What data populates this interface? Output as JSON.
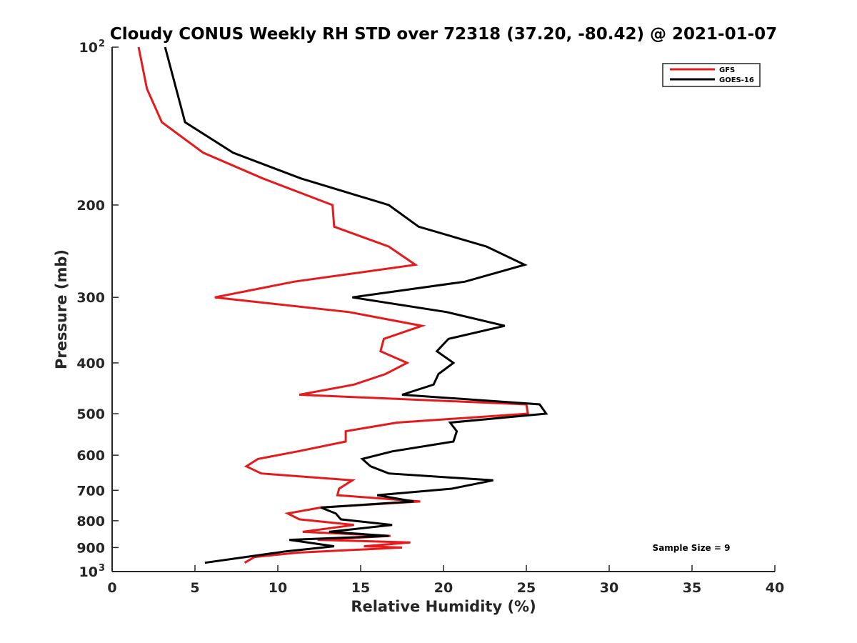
{
  "chart_data": {
    "type": "line",
    "title": "Cloudy CONUS Weekly RH STD over 72318 (37.20, -80.42) @ 2021-01-07",
    "xlabel": "Relative Humidity (%)",
    "ylabel": "Pressure (mb)",
    "xlim": [
      0,
      40
    ],
    "ylim": [
      100,
      1000
    ],
    "yscale": "log",
    "y_reversed": true,
    "grid": false,
    "x_ticks": [
      0,
      5,
      10,
      15,
      20,
      25,
      30,
      35,
      40
    ],
    "x_tick_labels": [
      "0",
      "5",
      "10",
      "15",
      "20",
      "25",
      "30",
      "35",
      "40"
    ],
    "y_ticks": [
      100,
      200,
      300,
      400,
      500,
      600,
      700,
      800,
      900,
      1000
    ],
    "y_tick_labels": [
      "10",
      "200",
      "300",
      "400",
      "500",
      "600",
      "700",
      "800",
      "900",
      "10"
    ],
    "y_tick_exponents": {
      "100": "2",
      "1000": "3"
    },
    "legend": {
      "placement": "top-right",
      "entries": [
        {
          "label": "GFS",
          "color": "#e41a1c"
        },
        {
          "label": "GOES-16",
          "color": "#000000"
        }
      ]
    },
    "annotation": "Sample Size = 9",
    "series": [
      {
        "name": "GFS",
        "color": "#e41a1c",
        "points": [
          [
            1.6,
            100
          ],
          [
            2.1,
            120
          ],
          [
            3.0,
            139
          ],
          [
            5.5,
            159
          ],
          [
            9.1,
            178
          ],
          [
            13.3,
            200
          ],
          [
            13.4,
            220
          ],
          [
            16.7,
            240
          ],
          [
            18.3,
            260
          ],
          [
            11.0,
            280
          ],
          [
            6.2,
            300
          ],
          [
            14.3,
            320
          ],
          [
            18.7,
            340
          ],
          [
            16.4,
            360
          ],
          [
            16.2,
            380
          ],
          [
            17.8,
            400
          ],
          [
            16.5,
            420
          ],
          [
            14.6,
            440
          ],
          [
            11.3,
            460
          ],
          [
            25.0,
            480
          ],
          [
            25.1,
            500
          ],
          [
            17.2,
            520
          ],
          [
            14.1,
            540
          ],
          [
            14.1,
            565
          ],
          [
            11.2,
            590
          ],
          [
            8.8,
            610
          ],
          [
            8.1,
            630
          ],
          [
            9.0,
            650
          ],
          [
            14.5,
            670
          ],
          [
            13.7,
            695
          ],
          [
            13.6,
            715
          ],
          [
            18.6,
            735
          ],
          [
            12.6,
            755
          ],
          [
            10.6,
            775
          ],
          [
            11.3,
            795
          ],
          [
            14.6,
            815
          ],
          [
            11.5,
            840
          ],
          [
            16.8,
            855
          ],
          [
            12.4,
            870
          ],
          [
            18.0,
            880
          ],
          [
            15.2,
            895
          ],
          [
            17.5,
            900
          ],
          [
            11.3,
            920
          ],
          [
            8.6,
            938
          ],
          [
            8.0,
            962
          ]
        ]
      },
      {
        "name": "GOES-16",
        "color": "#000000",
        "points": [
          [
            3.2,
            100
          ],
          [
            4.4,
            139
          ],
          [
            7.3,
            159
          ],
          [
            11.4,
            178
          ],
          [
            16.7,
            200
          ],
          [
            18.5,
            220
          ],
          [
            22.6,
            240
          ],
          [
            24.9,
            260
          ],
          [
            21.3,
            280
          ],
          [
            14.5,
            300
          ],
          [
            20.2,
            320
          ],
          [
            23.7,
            340
          ],
          [
            20.3,
            360
          ],
          [
            19.6,
            380
          ],
          [
            20.6,
            400
          ],
          [
            19.7,
            420
          ],
          [
            19.4,
            440
          ],
          [
            17.5,
            460
          ],
          [
            25.8,
            480
          ],
          [
            26.2,
            500
          ],
          [
            20.4,
            520
          ],
          [
            20.8,
            540
          ],
          [
            20.6,
            565
          ],
          [
            16.9,
            590
          ],
          [
            15.1,
            610
          ],
          [
            15.6,
            630
          ],
          [
            16.7,
            650
          ],
          [
            23.0,
            670
          ],
          [
            20.5,
            695
          ],
          [
            16.0,
            715
          ],
          [
            18.2,
            735
          ],
          [
            12.6,
            755
          ],
          [
            13.5,
            775
          ],
          [
            13.8,
            795
          ],
          [
            16.9,
            815
          ],
          [
            13.1,
            840
          ],
          [
            16.7,
            855
          ],
          [
            10.7,
            870
          ],
          [
            13.4,
            895
          ],
          [
            10.5,
            915
          ],
          [
            5.6,
            962
          ]
        ]
      }
    ]
  }
}
